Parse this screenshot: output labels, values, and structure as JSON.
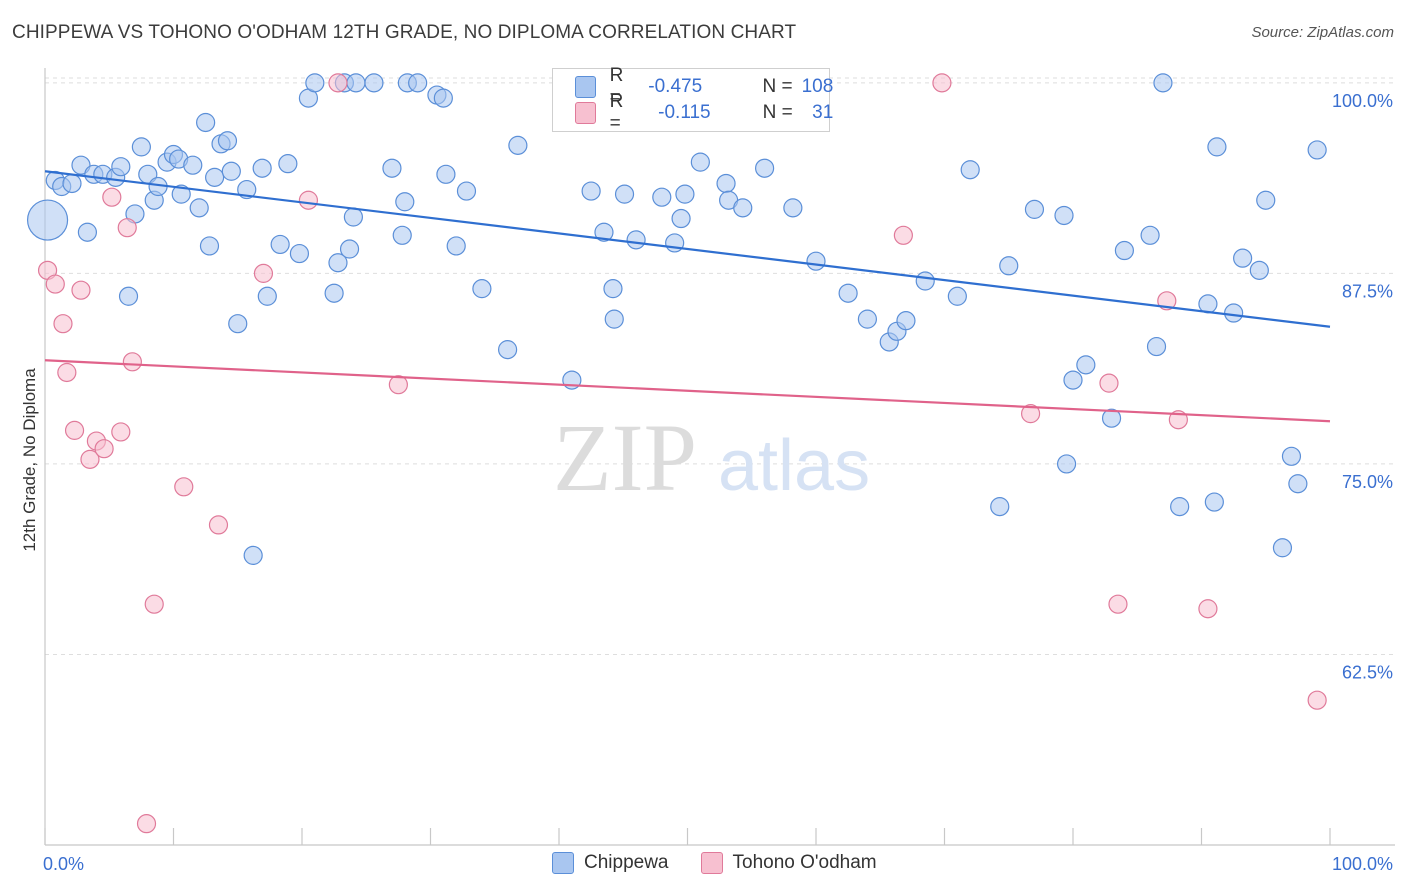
{
  "header": {
    "title": "CHIPPEWA VS TOHONO O'ODHAM 12TH GRADE, NO DIPLOMA CORRELATION CHART",
    "source": "Source: ZipAtlas.com"
  },
  "watermark": {
    "zip": "ZIP",
    "atlas": "atlas"
  },
  "legend": {
    "rows": [
      {
        "r_label": "R =",
        "r_value": "-0.475",
        "n_label": "N =",
        "n_value": "108",
        "color": "#a9c6f0",
        "border": "#5b8fd8"
      },
      {
        "r_label": "R =",
        "r_value": "-0.115",
        "n_label": "N =",
        "n_value": "31",
        "color": "#f7c0d0",
        "border": "#e07a9a"
      }
    ]
  },
  "bottom_legend": [
    {
      "label": "Chippewa",
      "color": "#a9c6f0",
      "border": "#5b8fd8"
    },
    {
      "label": "Tohono O'odham",
      "color": "#f7c0d0",
      "border": "#e07a9a"
    }
  ],
  "chart_data": {
    "type": "scatter",
    "ylabel": "12th Grade, No Diploma",
    "xlim": [
      0,
      100
    ],
    "ylim": [
      50,
      101.5
    ],
    "x_tick_labels": [
      "0.0%",
      "100.0%"
    ],
    "y_ticks": [
      100,
      87.5,
      75,
      62.5
    ],
    "y_tick_labels": [
      "100.0%",
      "87.5%",
      "75.0%",
      "62.5%"
    ],
    "grid": "dashed-horizontal",
    "series": [
      {
        "name": "Chippewa",
        "color": "#a9c6f0",
        "stroke": "#5b8fd8",
        "trend": {
          "x": [
            0,
            100
          ],
          "y": [
            94.2,
            84.0
          ],
          "color": "#2f6fd0"
        },
        "points": [
          [
            0.2,
            91.0
          ],
          [
            0.8,
            93.6
          ],
          [
            1.3,
            93.2
          ],
          [
            2.1,
            93.4
          ],
          [
            2.8,
            94.6
          ],
          [
            3.3,
            90.2
          ],
          [
            3.8,
            94.0
          ],
          [
            4.5,
            94.0
          ],
          [
            5.5,
            93.8
          ],
          [
            5.9,
            94.5
          ],
          [
            6.5,
            86.0
          ],
          [
            7.0,
            91.4
          ],
          [
            7.5,
            95.8
          ],
          [
            8.0,
            94.0
          ],
          [
            8.5,
            92.3
          ],
          [
            8.8,
            93.2
          ],
          [
            9.5,
            94.8
          ],
          [
            10.0,
            95.3
          ],
          [
            10.4,
            95.0
          ],
          [
            10.6,
            92.7
          ],
          [
            11.5,
            94.6
          ],
          [
            12.0,
            91.8
          ],
          [
            12.5,
            97.4
          ],
          [
            12.8,
            89.3
          ],
          [
            13.2,
            93.8
          ],
          [
            13.7,
            96.0
          ],
          [
            14.2,
            96.2
          ],
          [
            14.5,
            94.2
          ],
          [
            15.0,
            84.2
          ],
          [
            15.7,
            93.0
          ],
          [
            16.2,
            69.0
          ],
          [
            16.9,
            94.4
          ],
          [
            17.3,
            86.0
          ],
          [
            18.3,
            89.4
          ],
          [
            18.9,
            94.7
          ],
          [
            19.8,
            88.8
          ],
          [
            20.5,
            99.0
          ],
          [
            21.0,
            100.0
          ],
          [
            22.5,
            86.2
          ],
          [
            22.8,
            88.2
          ],
          [
            23.3,
            100.0
          ],
          [
            23.7,
            89.1
          ],
          [
            24.0,
            91.2
          ],
          [
            24.2,
            100.0
          ],
          [
            25.6,
            100.0
          ],
          [
            27.0,
            94.4
          ],
          [
            28.0,
            92.2
          ],
          [
            27.8,
            90.0
          ],
          [
            28.2,
            100.0
          ],
          [
            29.0,
            100.0
          ],
          [
            30.5,
            99.2
          ],
          [
            31.0,
            99.0
          ],
          [
            31.2,
            94.0
          ],
          [
            32.0,
            89.3
          ],
          [
            32.8,
            92.9
          ],
          [
            34.0,
            86.5
          ],
          [
            36.0,
            82.5
          ],
          [
            36.8,
            95.9
          ],
          [
            41.0,
            80.5
          ],
          [
            42.5,
            92.9
          ],
          [
            43.5,
            90.2
          ],
          [
            44.2,
            86.5
          ],
          [
            44.3,
            84.5
          ],
          [
            45.1,
            92.7
          ],
          [
            46.0,
            89.7
          ],
          [
            48.0,
            92.5
          ],
          [
            49.0,
            89.5
          ],
          [
            49.5,
            91.1
          ],
          [
            49.8,
            92.7
          ],
          [
            51.0,
            94.8
          ],
          [
            53.0,
            93.4
          ],
          [
            53.2,
            92.3
          ],
          [
            54.3,
            91.8
          ],
          [
            56.0,
            94.4
          ],
          [
            58.2,
            91.8
          ],
          [
            60.0,
            88.3
          ],
          [
            62.5,
            86.2
          ],
          [
            64.0,
            84.5
          ],
          [
            65.7,
            83.0
          ],
          [
            66.3,
            83.7
          ],
          [
            67.0,
            84.4
          ],
          [
            68.5,
            87.0
          ],
          [
            71.0,
            86.0
          ],
          [
            72.0,
            94.3
          ],
          [
            75.0,
            88.0
          ],
          [
            77.0,
            91.7
          ],
          [
            79.3,
            91.3
          ],
          [
            79.5,
            75.0
          ],
          [
            80.0,
            80.5
          ],
          [
            81.0,
            81.5
          ],
          [
            83.0,
            78.0
          ],
          [
            84.0,
            89.0
          ],
          [
            86.0,
            90.0
          ],
          [
            86.5,
            82.7
          ],
          [
            87.0,
            100.0
          ],
          [
            88.3,
            72.2
          ],
          [
            90.5,
            85.5
          ],
          [
            91.0,
            72.5
          ],
          [
            91.2,
            95.8
          ],
          [
            92.5,
            84.9
          ],
          [
            93.2,
            88.5
          ],
          [
            94.5,
            87.7
          ],
          [
            95.0,
            92.3
          ],
          [
            96.3,
            69.5
          ],
          [
            97.0,
            75.5
          ],
          [
            97.5,
            73.7
          ],
          [
            99.0,
            95.6
          ],
          [
            74.3,
            72.2
          ]
        ]
      },
      {
        "name": "Tohono O'odham",
        "color": "#f7c0d0",
        "stroke": "#e07a9a",
        "trend": {
          "x": [
            0,
            100
          ],
          "y": [
            81.8,
            77.8
          ],
          "color": "#e0628a"
        },
        "points": [
          [
            0.2,
            87.7
          ],
          [
            0.8,
            86.8
          ],
          [
            1.4,
            84.2
          ],
          [
            1.7,
            81.0
          ],
          [
            2.3,
            77.2
          ],
          [
            2.8,
            86.4
          ],
          [
            3.5,
            75.3
          ],
          [
            4.0,
            76.5
          ],
          [
            4.6,
            76.0
          ],
          [
            5.2,
            92.5
          ],
          [
            5.9,
            77.1
          ],
          [
            6.4,
            90.5
          ],
          [
            6.8,
            81.7
          ],
          [
            7.9,
            51.4
          ],
          [
            8.5,
            65.8
          ],
          [
            10.8,
            73.5
          ],
          [
            13.5,
            71.0
          ],
          [
            17.0,
            87.5
          ],
          [
            20.5,
            92.3
          ],
          [
            22.8,
            100.0
          ],
          [
            27.5,
            80.2
          ],
          [
            47.2,
            100.0
          ],
          [
            66.8,
            90.0
          ],
          [
            69.8,
            100.0
          ],
          [
            76.7,
            78.3
          ],
          [
            82.8,
            80.3
          ],
          [
            83.5,
            65.8
          ],
          [
            87.3,
            85.7
          ],
          [
            88.2,
            77.9
          ],
          [
            90.5,
            65.5
          ],
          [
            99.0,
            59.5
          ]
        ]
      }
    ]
  }
}
